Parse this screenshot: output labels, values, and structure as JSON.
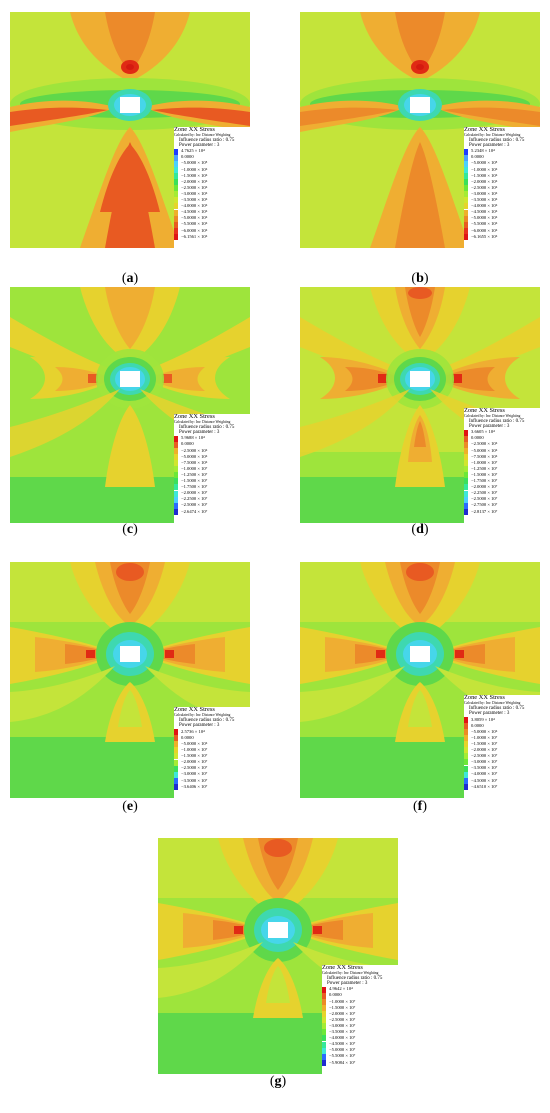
{
  "legend_text": {
    "title": "Zone XX Stress",
    "calculated_by": "Calculated by: Inv. Distance Weighting",
    "influence_label": "Influence radius ratio",
    "influence_value": ": 0.75",
    "power_label": "Power parameter",
    "power_value": ": 3"
  },
  "panels": [
    {
      "label": "a",
      "caption_open": "(",
      "caption_close": ")",
      "variant": "a",
      "legend_entries": [
        {
          "value": "4.7625 × 10⁴",
          "color": "#1e3cff"
        },
        {
          "value": "0.0000",
          "color": "#4aa0ff"
        },
        {
          "value": "−5.0000 × 10⁵",
          "color": "#4ad0ff"
        },
        {
          "value": "−1.0000 × 10⁶",
          "color": "#3ee8d8"
        },
        {
          "value": "−1.5000 × 10⁶",
          "color": "#34e89a"
        },
        {
          "value": "−2.0000 × 10⁶",
          "color": "#3ae05a"
        },
        {
          "value": "−2.5000 × 10⁶",
          "color": "#6ce838"
        },
        {
          "value": "−3.0000 × 10⁶",
          "color": "#a4ec34"
        },
        {
          "value": "−3.5000 × 10⁶",
          "color": "#d0e62e"
        },
        {
          "value": "−4.0000 × 10⁶",
          "color": "#e6d42a"
        },
        {
          "value": "−4.5000 × 10⁶",
          "color": "#eeb02a"
        },
        {
          "value": "−5.0000 × 10⁶",
          "color": "#ec8a26"
        },
        {
          "value": "−5.5000 × 10⁶",
          "color": "#e85c22"
        },
        {
          "value": "−6.0000 × 10⁶",
          "color": "#e8301e"
        },
        {
          "value": "−6.1561 × 10⁶",
          "color": "#e01414"
        }
      ]
    },
    {
      "label": "b",
      "caption_open": "(",
      "caption_close": ")",
      "variant": "b",
      "legend_entries": [
        {
          "value": "5.2348 × 10⁴",
          "color": "#1e3cff"
        },
        {
          "value": "0.0000",
          "color": "#4aa0ff"
        },
        {
          "value": "−5.0000 × 10⁵",
          "color": "#4ad0ff"
        },
        {
          "value": "−1.0000 × 10⁶",
          "color": "#3ee8d8"
        },
        {
          "value": "−1.5000 × 10⁶",
          "color": "#34e89a"
        },
        {
          "value": "−2.0000 × 10⁶",
          "color": "#3ae05a"
        },
        {
          "value": "−2.5000 × 10⁶",
          "color": "#6ce838"
        },
        {
          "value": "−3.0000 × 10⁶",
          "color": "#a4ec34"
        },
        {
          "value": "−3.5000 × 10⁶",
          "color": "#d0e62e"
        },
        {
          "value": "−4.0000 × 10⁶",
          "color": "#e6d42a"
        },
        {
          "value": "−4.5000 × 10⁶",
          "color": "#eeb02a"
        },
        {
          "value": "−5.0000 × 10⁶",
          "color": "#ec8a26"
        },
        {
          "value": "−5.5000 × 10⁶",
          "color": "#e85c22"
        },
        {
          "value": "−6.0000 × 10⁶",
          "color": "#e8301e"
        },
        {
          "value": "−6.1655 × 10⁶",
          "color": "#e01414"
        }
      ]
    },
    {
      "label": "c",
      "caption_open": "(",
      "caption_close": ")",
      "variant": "c",
      "legend_entries": [
        {
          "value": "5.9688 × 10⁴",
          "color": "#e01414"
        },
        {
          "value": "0.0000",
          "color": "#e85c22"
        },
        {
          "value": "−2.5000 × 10⁶",
          "color": "#eeb02a"
        },
        {
          "value": "−5.0000 × 10⁶",
          "color": "#e6d42a"
        },
        {
          "value": "−7.5000 × 10⁶",
          "color": "#d0e62e"
        },
        {
          "value": "−1.0000 × 10⁷",
          "color": "#a4ec34"
        },
        {
          "value": "−1.2500 × 10⁷",
          "color": "#6ce838"
        },
        {
          "value": "−1.5000 × 10⁷",
          "color": "#3ae05a"
        },
        {
          "value": "−1.7500 × 10⁷",
          "color": "#34e89a"
        },
        {
          "value": "−2.0000 × 10⁷",
          "color": "#3ee8d8"
        },
        {
          "value": "−2.2500 × 10⁷",
          "color": "#4ad0ff"
        },
        {
          "value": "−2.5000 × 10⁷",
          "color": "#2a6cff"
        },
        {
          "value": "−2.6474 × 10⁷",
          "color": "#1e2cd0"
        }
      ]
    },
    {
      "label": "d",
      "caption_open": "(",
      "caption_close": ")",
      "variant": "d",
      "legend_entries": [
        {
          "value": "3.6605 × 10⁴",
          "color": "#e01414"
        },
        {
          "value": "0.0000",
          "color": "#e85c22"
        },
        {
          "value": "−2.5000 × 10⁶",
          "color": "#ec8a26"
        },
        {
          "value": "−5.0000 × 10⁶",
          "color": "#eeb02a"
        },
        {
          "value": "−7.5000 × 10⁶",
          "color": "#e6d42a"
        },
        {
          "value": "−1.0000 × 10⁷",
          "color": "#d0e62e"
        },
        {
          "value": "−1.2500 × 10⁷",
          "color": "#a4ec34"
        },
        {
          "value": "−1.5000 × 10⁷",
          "color": "#6ce838"
        },
        {
          "value": "−1.7500 × 10⁷",
          "color": "#3ae05a"
        },
        {
          "value": "−2.0000 × 10⁷",
          "color": "#34e89a"
        },
        {
          "value": "−2.2500 × 10⁷",
          "color": "#3ee8d8"
        },
        {
          "value": "−2.5000 × 10⁷",
          "color": "#4ad0ff"
        },
        {
          "value": "−2.7500 × 10⁷",
          "color": "#2a6cff"
        },
        {
          "value": "−2.8137 × 10⁷",
          "color": "#1e2cd0"
        }
      ]
    },
    {
      "label": "e",
      "caption_open": "(",
      "caption_close": ")",
      "variant": "e",
      "legend_entries": [
        {
          "value": "2.5736 × 10⁴",
          "color": "#e01414"
        },
        {
          "value": "0.0000",
          "color": "#e85c22"
        },
        {
          "value": "−5.0000 × 10⁶",
          "color": "#eeb02a"
        },
        {
          "value": "−1.0000 × 10⁷",
          "color": "#e6d42a"
        },
        {
          "value": "−1.5000 × 10⁷",
          "color": "#d0e62e"
        },
        {
          "value": "−2.0000 × 10⁷",
          "color": "#a4ec34"
        },
        {
          "value": "−2.5000 × 10⁷",
          "color": "#3ae05a"
        },
        {
          "value": "−3.0000 × 10⁷",
          "color": "#3ee8d8"
        },
        {
          "value": "−3.5000 × 10⁷",
          "color": "#2a6cff"
        },
        {
          "value": "−3.6406 × 10⁷",
          "color": "#1e2cd0"
        }
      ]
    },
    {
      "label": "f",
      "caption_open": "(",
      "caption_close": ")",
      "variant": "f",
      "legend_entries": [
        {
          "value": "3.8059 × 10⁴",
          "color": "#e01414"
        },
        {
          "value": "0.0000",
          "color": "#e85c22"
        },
        {
          "value": "−5.0000 × 10⁶",
          "color": "#ec8a26"
        },
        {
          "value": "−1.0000 × 10⁷",
          "color": "#eeb02a"
        },
        {
          "value": "−1.5000 × 10⁷",
          "color": "#e6d42a"
        },
        {
          "value": "−2.0000 × 10⁷",
          "color": "#d0e62e"
        },
        {
          "value": "−2.5000 × 10⁷",
          "color": "#a4ec34"
        },
        {
          "value": "−3.0000 × 10⁷",
          "color": "#6ce838"
        },
        {
          "value": "−3.5000 × 10⁷",
          "color": "#3ae05a"
        },
        {
          "value": "−4.0000 × 10⁷",
          "color": "#3ee8d8"
        },
        {
          "value": "−4.5000 × 10⁷",
          "color": "#2a6cff"
        },
        {
          "value": "−4.6510 × 10⁷",
          "color": "#1e2cd0"
        }
      ]
    },
    {
      "label": "g",
      "caption_open": "(",
      "caption_close": ")",
      "variant": "g",
      "legend_entries": [
        {
          "value": "4.9642 × 10⁴",
          "color": "#e01414"
        },
        {
          "value": "0.0000",
          "color": "#e85c22"
        },
        {
          "value": "−1.0000 × 10⁷",
          "color": "#ec8a26"
        },
        {
          "value": "−1.5000 × 10⁷",
          "color": "#eeb02a"
        },
        {
          "value": "−2.0000 × 10⁷",
          "color": "#e6d42a"
        },
        {
          "value": "−2.5000 × 10⁷",
          "color": "#d0e62e"
        },
        {
          "value": "−3.0000 × 10⁷",
          "color": "#a4ec34"
        },
        {
          "value": "−3.5000 × 10⁷",
          "color": "#6ce838"
        },
        {
          "value": "−4.0000 × 10⁷",
          "color": "#3ae05a"
        },
        {
          "value": "−4.5000 × 10⁷",
          "color": "#34e89a"
        },
        {
          "value": "−5.0000 × 10⁷",
          "color": "#3ee8d8"
        },
        {
          "value": "−5.5000 × 10⁷",
          "color": "#2a6cff"
        },
        {
          "value": "−5.9084 × 10⁷",
          "color": "#1e2cd0"
        }
      ]
    }
  ]
}
